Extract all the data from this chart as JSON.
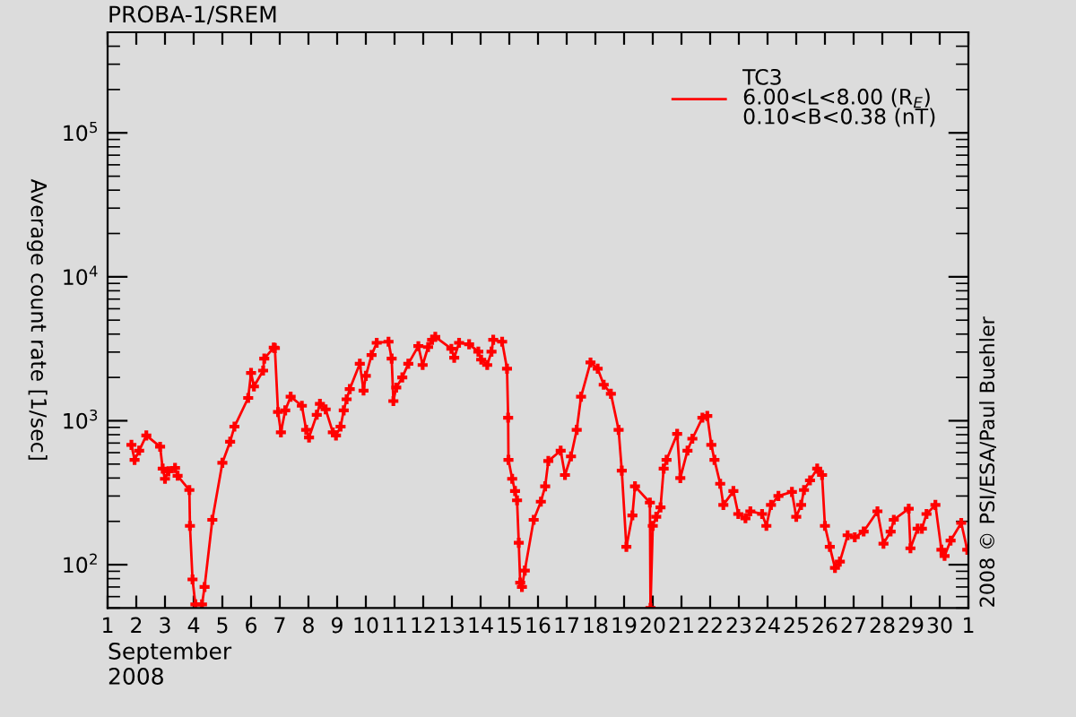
{
  "chart_data": {
    "type": "line",
    "title": "PROBA-1/SREM",
    "xlabel": "September\n2008",
    "ylabel": "Average count rate [1/sec]",
    "annotations": [
      "2008 © PSI/ESA/Paul Buehler"
    ],
    "log": "y",
    "marker": "cross",
    "line_style": "solid",
    "legend": "top right",
    "grid": false,
    "xlim": [
      "2008-09-01",
      "2008-10-01"
    ],
    "xticks": [
      {
        "value": "2008-09-01",
        "label": "1"
      },
      {
        "value": "2008-09-02",
        "label": "2"
      },
      {
        "value": "2008-09-03",
        "label": "3"
      },
      {
        "value": "2008-09-04",
        "label": "4"
      },
      {
        "value": "2008-09-05",
        "label": "5"
      },
      {
        "value": "2008-09-06",
        "label": "6"
      },
      {
        "value": "2008-09-07",
        "label": "7"
      },
      {
        "value": "2008-09-08",
        "label": "8"
      },
      {
        "value": "2008-09-09",
        "label": "9"
      },
      {
        "value": "2008-09-10",
        "label": "10"
      },
      {
        "value": "2008-09-11",
        "label": "11"
      },
      {
        "value": "2008-09-12",
        "label": "12"
      },
      {
        "value": "2008-09-13",
        "label": "13"
      },
      {
        "value": "2008-09-14",
        "label": "14"
      },
      {
        "value": "2008-09-15",
        "label": "15"
      },
      {
        "value": "2008-09-16",
        "label": "16"
      },
      {
        "value": "2008-09-17",
        "label": "17"
      },
      {
        "value": "2008-09-18",
        "label": "18"
      },
      {
        "value": "2008-09-19",
        "label": "19"
      },
      {
        "value": "2008-09-20",
        "label": "20"
      },
      {
        "value": "2008-09-21",
        "label": "21"
      },
      {
        "value": "2008-09-22",
        "label": "22"
      },
      {
        "value": "2008-09-23",
        "label": "23"
      },
      {
        "value": "2008-09-24",
        "label": "24"
      },
      {
        "value": "2008-09-25",
        "label": "25"
      },
      {
        "value": "2008-09-26",
        "label": "26"
      },
      {
        "value": "2008-09-27",
        "label": "27"
      },
      {
        "value": "2008-09-28",
        "label": "28"
      },
      {
        "value": "2008-09-29",
        "label": "29"
      },
      {
        "value": "2008-09-30",
        "label": "30"
      },
      {
        "value": "2008-10-01",
        "label": "1"
      }
    ],
    "ylim": [
      50,
      500000
    ],
    "yticks": [
      {
        "value": 100,
        "label": "10$^{2}$"
      },
      {
        "value": 1000,
        "label": "10$^{3}$"
      },
      {
        "value": 10000,
        "label": "10$^{4}$"
      },
      {
        "value": 100000,
        "label": "10$^{5}$"
      }
    ],
    "series": [
      {
        "name": "TC3\n6.00<L<8.00 (R$_{E}$)\n0.10<B<0.38 (nT)",
        "color": "#ff0000",
        "x": [
          "2008-09-01T19:55",
          "2008-09-01T22:34",
          "2008-09-02T02:24",
          "2008-09-02T08:24",
          "2008-09-02T19:55",
          "2008-09-02T22:05",
          "2008-09-03T00:00",
          "2008-09-03T02:53",
          "2008-09-03T08:24",
          "2008-09-03T10:34",
          "2008-09-03T20:24",
          "2008-09-03T20:53",
          "2008-09-03T23:02",
          "2008-09-04T01:26",
          "2008-09-04T06:58",
          "2008-09-04T09:07",
          "2008-09-04T15:36",
          "2008-09-05T00:00",
          "2008-09-05T06:29",
          "2008-09-05T10:05",
          "2008-09-05T21:36",
          "2008-09-06T00:00",
          "2008-09-06T02:24",
          "2008-09-06T10:05",
          "2008-09-06T11:02",
          "2008-09-06T18:58",
          "2008-09-06T19:55",
          "2008-09-06T22:34",
          "2008-09-07T00:58",
          "2008-09-07T04:34",
          "2008-09-07T09:07",
          "2008-09-07T18:29",
          "2008-09-07T22:05",
          "2008-09-08T00:29",
          "2008-09-08T06:58",
          "2008-09-08T09:36",
          "2008-09-08T14:24",
          "2008-09-08T20:24",
          "2008-09-08T23:02",
          "2008-09-09T02:53",
          "2008-09-09T05:31",
          "2008-09-09T07:55",
          "2008-09-09T10:34",
          "2008-09-09T18:58",
          "2008-09-09T22:05",
          "2008-09-10T00:00",
          "2008-09-10T04:48",
          "2008-09-10T09:07",
          "2008-09-10T18:58",
          "2008-09-10T21:36",
          "2008-09-10T23:02",
          "2008-09-11T01:26",
          "2008-09-11T06:29",
          "2008-09-11T11:31",
          "2008-09-11T19:55",
          "2008-09-11T23:31",
          "2008-09-12T04:05",
          "2008-09-12T07:26",
          "2008-09-12T10:05",
          "2008-09-12T23:31",
          "2008-09-13T01:55",
          "2008-09-13T06:00",
          "2008-09-13T14:24",
          "2008-09-13T22:05",
          "2008-09-14T00:29",
          "2008-09-14T05:31",
          "2008-09-14T09:07",
          "2008-09-14T10:34",
          "2008-09-14T18:00",
          "2008-09-14T22:05",
          "2008-09-14T23:02",
          "2008-09-14T23:17",
          "2008-09-15T02:24",
          "2008-09-15T04:48",
          "2008-09-15T06:29",
          "2008-09-15T07:55",
          "2008-09-15T09:07",
          "2008-09-15T10:34",
          "2008-09-15T12:58",
          "2008-09-15T20:24",
          "2008-09-16T02:24",
          "2008-09-16T06:00",
          "2008-09-16T08:38",
          "2008-09-16T18:58",
          "2008-09-16T22:34",
          "2008-09-17T03:36",
          "2008-09-17T08:24",
          "2008-09-17T12:00",
          "2008-09-17T19:55",
          "2008-09-18T01:55",
          "2008-09-18T06:58",
          "2008-09-18T12:58",
          "2008-09-18T19:26",
          "2008-09-18T22:05",
          "2008-09-19T01:55",
          "2008-09-19T06:58",
          "2008-09-19T09:07",
          "2008-09-19T21:36",
          "2008-09-19T22:05",
          "2008-09-20T00:00",
          "2008-09-20T02:53",
          "2008-09-20T06:29",
          "2008-09-20T09:07",
          "2008-09-20T11:31",
          "2008-09-20T20:24",
          "2008-09-20T23:02",
          "2008-09-21T05:02",
          "2008-09-21T09:07",
          "2008-09-21T17:31",
          "2008-09-21T21:36",
          "2008-09-22T00:58",
          "2008-09-22T03:36",
          "2008-09-22T08:24",
          "2008-09-22T11:02",
          "2008-09-22T19:26",
          "2008-09-22T23:31",
          "2008-09-23T05:31",
          "2008-09-23T09:36",
          "2008-09-23T19:26",
          "2008-09-23T23:02",
          "2008-09-24T02:53",
          "2008-09-24T09:07",
          "2008-09-24T20:24",
          "2008-09-25T00:00",
          "2008-09-25T04:05",
          "2008-09-25T06:29",
          "2008-09-25T11:31",
          "2008-09-25T17:31",
          "2008-09-25T21:36",
          "2008-09-26T00:00",
          "2008-09-26T04:05",
          "2008-09-26T08:24",
          "2008-09-26T12:29",
          "2008-09-26T18:58",
          "2008-09-27T00:58",
          "2008-09-27T08:24",
          "2008-09-27T19:55",
          "2008-09-28T00:58",
          "2008-09-28T06:58",
          "2008-09-28T09:36",
          "2008-09-28T22:05",
          "2008-09-28T23:31",
          "2008-09-29T05:31",
          "2008-09-29T09:07",
          "2008-09-29T12:58",
          "2008-09-29T20:24",
          "2008-09-30T01:26",
          "2008-09-30T04:05",
          "2008-09-30T09:07",
          "2008-09-30T18:00",
          "2008-09-30T23:02"
        ],
        "values": [
          680,
          535,
          620,
          790,
          660,
          465,
          395,
          445,
          470,
          415,
          330,
          186,
          79,
          53,
          53,
          70,
          205,
          510,
          715,
          910,
          1440,
          2150,
          1730,
          2230,
          2700,
          3220,
          3200,
          1150,
          830,
          1180,
          1470,
          1270,
          865,
          765,
          1100,
          1310,
          1200,
          830,
          790,
          910,
          1180,
          1410,
          1660,
          2490,
          1620,
          2050,
          2860,
          3480,
          3540,
          2700,
          1370,
          1700,
          2000,
          2490,
          3300,
          2440,
          3250,
          3650,
          3830,
          3160,
          2740,
          3480,
          3400,
          3020,
          2660,
          2440,
          3020,
          3650,
          3540,
          2300,
          1050,
          535,
          395,
          325,
          280,
          142,
          75,
          70,
          91,
          205,
          274,
          350,
          525,
          620,
          420,
          565,
          865,
          1470,
          2540,
          2300,
          1780,
          1540,
          865,
          450,
          133,
          220,
          350,
          270,
          50,
          186,
          215,
          250,
          465,
          535,
          810,
          400,
          620,
          750,
          1050,
          1080,
          680,
          535,
          365,
          260,
          325,
          225,
          210,
          235,
          225,
          186,
          260,
          300,
          320,
          215,
          260,
          330,
          385,
          465,
          420,
          186,
          133,
          95,
          105,
          160,
          155,
          170,
          235,
          140,
          170,
          205,
          245,
          130,
          178,
          178,
          225,
          260,
          127,
          115,
          147,
          195,
          127
        ]
      }
    ]
  }
}
